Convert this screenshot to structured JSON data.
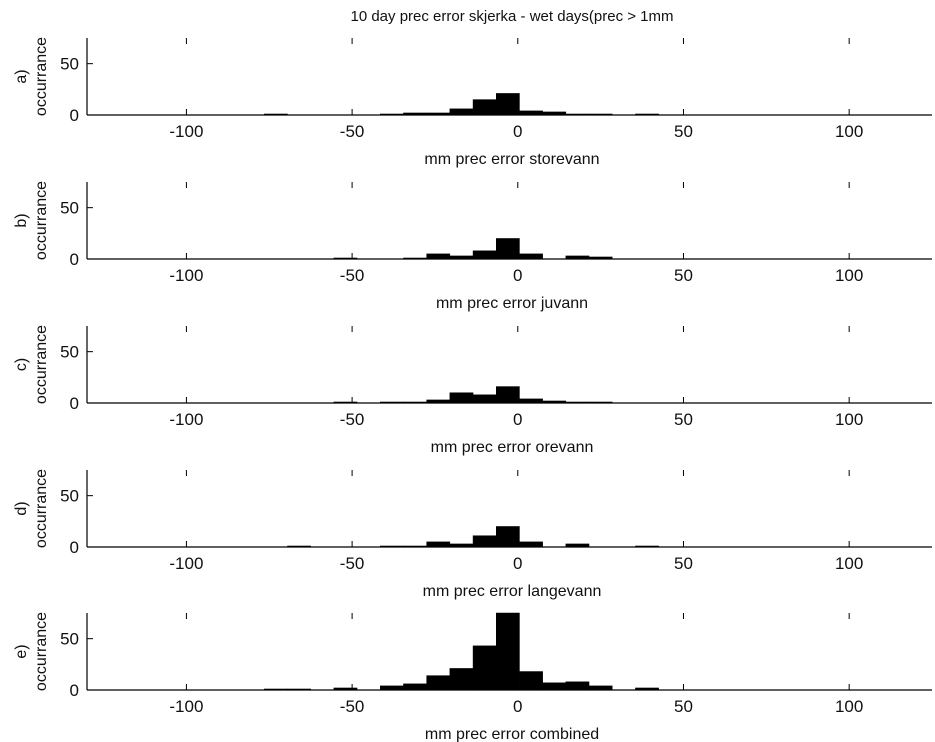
{
  "title": "10 day prec error skjerka - wet days(prec > 1mm",
  "chart_data": [
    {
      "type": "bar",
      "panel": "a)",
      "xlabel": "mm prec error storevann",
      "ylabel": "occurrance",
      "xlim": [
        -130,
        125
      ],
      "ylim": [
        0,
        75
      ],
      "xticks": [
        -100,
        -50,
        0,
        50,
        100
      ],
      "yticks": [
        0,
        50
      ],
      "bin_width": 7,
      "bins": [
        {
          "x": -73,
          "y": 1
        },
        {
          "x": -38,
          "y": 1
        },
        {
          "x": -31,
          "y": 2
        },
        {
          "x": -24,
          "y": 2
        },
        {
          "x": -17,
          "y": 6
        },
        {
          "x": -10,
          "y": 15
        },
        {
          "x": -3,
          "y": 21
        },
        {
          "x": 4,
          "y": 4
        },
        {
          "x": 11,
          "y": 3
        },
        {
          "x": 18,
          "y": 1
        },
        {
          "x": 25,
          "y": 1
        },
        {
          "x": 39,
          "y": 1
        }
      ]
    },
    {
      "type": "bar",
      "panel": "b)",
      "xlabel": "mm prec error juvann",
      "ylabel": "occurrance",
      "xlim": [
        -130,
        125
      ],
      "ylim": [
        0,
        75
      ],
      "xticks": [
        -100,
        -50,
        0,
        50,
        100
      ],
      "yticks": [
        0,
        50
      ],
      "bin_width": 7,
      "bins": [
        {
          "x": -52,
          "y": 1
        },
        {
          "x": -31,
          "y": 1
        },
        {
          "x": -24,
          "y": 5
        },
        {
          "x": -17,
          "y": 3
        },
        {
          "x": -10,
          "y": 8
        },
        {
          "x": -3,
          "y": 20
        },
        {
          "x": 4,
          "y": 5
        },
        {
          "x": 18,
          "y": 3
        },
        {
          "x": 25,
          "y": 2
        }
      ]
    },
    {
      "type": "bar",
      "panel": "c)",
      "xlabel": "mm prec error orevann",
      "ylabel": "occurrance",
      "xlim": [
        -130,
        125
      ],
      "ylim": [
        0,
        75
      ],
      "xticks": [
        -100,
        -50,
        0,
        50,
        100
      ],
      "yticks": [
        0,
        50
      ],
      "bin_width": 7,
      "bins": [
        {
          "x": -52,
          "y": 1
        },
        {
          "x": -38,
          "y": 1
        },
        {
          "x": -31,
          "y": 1
        },
        {
          "x": -24,
          "y": 3
        },
        {
          "x": -17,
          "y": 10
        },
        {
          "x": -10,
          "y": 8
        },
        {
          "x": -3,
          "y": 16
        },
        {
          "x": 4,
          "y": 4
        },
        {
          "x": 11,
          "y": 2
        },
        {
          "x": 18,
          "y": 1
        },
        {
          "x": 25,
          "y": 1
        }
      ]
    },
    {
      "type": "bar",
      "panel": "d)",
      "xlabel": "mm prec error langevann",
      "ylabel": "occurrance",
      "xlim": [
        -130,
        125
      ],
      "ylim": [
        0,
        75
      ],
      "xticks": [
        -100,
        -50,
        0,
        50,
        100
      ],
      "yticks": [
        0,
        50
      ],
      "bin_width": 7,
      "bins": [
        {
          "x": -66,
          "y": 1
        },
        {
          "x": -38,
          "y": 1
        },
        {
          "x": -31,
          "y": 1
        },
        {
          "x": -24,
          "y": 5
        },
        {
          "x": -17,
          "y": 3
        },
        {
          "x": -10,
          "y": 11
        },
        {
          "x": -3,
          "y": 20
        },
        {
          "x": 4,
          "y": 5
        },
        {
          "x": 18,
          "y": 3
        },
        {
          "x": 39,
          "y": 1
        }
      ]
    },
    {
      "type": "bar",
      "panel": "e)",
      "xlabel": "mm prec error combined",
      "ylabel": "occurrance",
      "xlim": [
        -130,
        125
      ],
      "ylim": [
        0,
        75
      ],
      "xticks": [
        -100,
        -50,
        0,
        50,
        100
      ],
      "yticks": [
        0,
        50
      ],
      "bin_width": 7,
      "bins": [
        {
          "x": -73,
          "y": 1
        },
        {
          "x": -66,
          "y": 1
        },
        {
          "x": -52,
          "y": 2
        },
        {
          "x": -38,
          "y": 4
        },
        {
          "x": -31,
          "y": 6
        },
        {
          "x": -24,
          "y": 14
        },
        {
          "x": -17,
          "y": 21
        },
        {
          "x": -10,
          "y": 43
        },
        {
          "x": -3,
          "y": 75
        },
        {
          "x": 4,
          "y": 18
        },
        {
          "x": 11,
          "y": 7
        },
        {
          "x": 18,
          "y": 8
        },
        {
          "x": 25,
          "y": 4
        },
        {
          "x": 39,
          "y": 2
        }
      ]
    }
  ]
}
